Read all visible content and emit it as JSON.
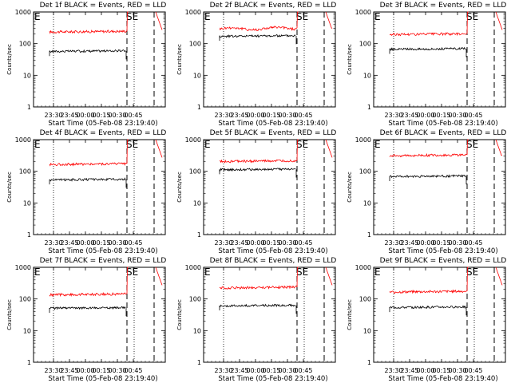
{
  "chart_data": [
    {
      "type": "line",
      "title": "Det 1f BLACK = Events, RED = LLD",
      "events": 58,
      "lld": 240,
      "lld_wobble": 0
    },
    {
      "type": "line",
      "title": "Det 2f BLACK = Events, RED = LLD",
      "events": 175,
      "lld": 300,
      "lld_wobble": 1
    },
    {
      "type": "line",
      "title": "Det 3f BLACK = Events, RED = LLD",
      "events": 68,
      "lld": 200,
      "lld_wobble": 0
    },
    {
      "type": "line",
      "title": "Det 4f BLACK = Events, RED = LLD",
      "events": 55,
      "lld": 170,
      "lld_wobble": 0
    },
    {
      "type": "line",
      "title": "Det 5f BLACK = Events, RED = LLD",
      "events": 115,
      "lld": 210,
      "lld_wobble": 0
    },
    {
      "type": "line",
      "title": "Det 6f BLACK = Events, RED = LLD",
      "events": 70,
      "lld": 320,
      "lld_wobble": 0
    },
    {
      "type": "line",
      "title": "Det 7f BLACK = Events, RED = LLD",
      "events": 52,
      "lld": 140,
      "lld_wobble": 0
    },
    {
      "type": "line",
      "title": "Det 8f BLACK = Events, RED = LLD",
      "events": 62,
      "lld": 230,
      "lld_wobble": 0
    },
    {
      "type": "line",
      "title": "Det 9f BLACK = Events, RED = LLD",
      "events": 55,
      "lld": 170,
      "lld_wobble": 0
    }
  ],
  "shared": {
    "ylabel": "Counts/sec",
    "xlabel": "Start Time (05-Feb-08 23:19:40)",
    "x_ticks": [
      "23:30",
      "23:45",
      "00:00",
      "00:15",
      "00:30",
      "00:45"
    ],
    "y_ticks": [
      "1",
      "10",
      "100",
      "1000"
    ],
    "ylim": [
      1,
      1000
    ],
    "marker_left": "E",
    "marker_mid": "SE",
    "series_colors": {
      "events": "#000000",
      "lld": "#ff0000"
    }
  }
}
